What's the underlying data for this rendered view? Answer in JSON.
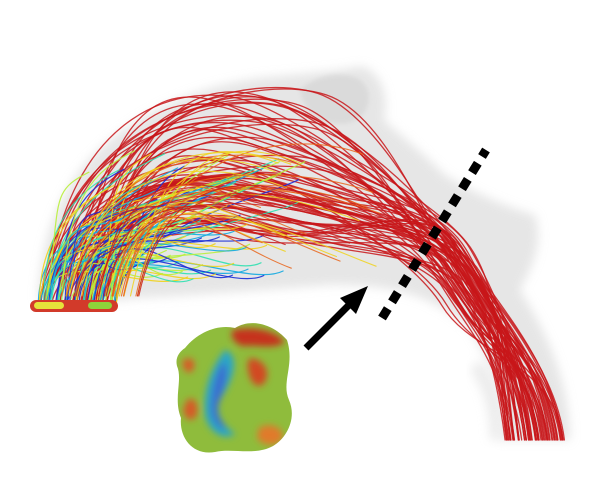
{
  "figure": {
    "background": "#ffffff",
    "vessel_color": "#c9c9c9",
    "streamline_colors": [
      "#1a2fd6",
      "#12a9e0",
      "#2fe0b0",
      "#b8ef3a",
      "#f0d21c",
      "#e9641a",
      "#c81c1c"
    ],
    "dominant_streamline_color": "#c8161a",
    "arrow_color": "#000000",
    "cut_line_color": "#000000",
    "cut_line_style": "dotted",
    "inset": {
      "colors": [
        "#8dbb3a",
        "#3a8fd0",
        "#29b6c8",
        "#c8321e",
        "#e07a2c",
        "#9ec23a"
      ]
    }
  }
}
